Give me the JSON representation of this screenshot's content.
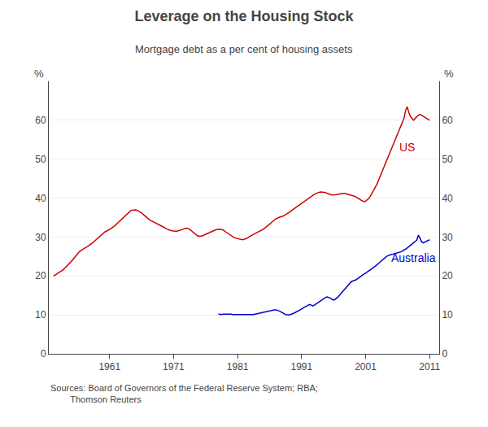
{
  "chart_data": {
    "type": "line",
    "title": "Leverage on the Housing Stock",
    "subtitle": "Mortgage debt as a per cent of housing assets",
    "ylabel": "%",
    "y2label": "%",
    "source": "Sources: Board of Governors of the Federal Reserve System; RBA;\n        Thomson Reuters",
    "xlim": [
      1951.5,
      2012.5
    ],
    "xticks": [
      1961,
      1971,
      1981,
      1991,
      2001,
      2011
    ],
    "ylim": [
      0,
      70
    ],
    "yticks": [
      0,
      10,
      20,
      30,
      40,
      50,
      60
    ],
    "y2lim": [
      0,
      70
    ],
    "y2ticks": [
      0,
      10,
      20,
      30,
      40,
      50,
      60
    ],
    "grid": true,
    "annotations": [
      {
        "text": "US",
        "x": 2006.0,
        "y": 51.0,
        "color": "#cc0000"
      },
      {
        "text": "Australia",
        "x": 2004.8,
        "y": 22.5,
        "color": "#0000cc"
      }
    ],
    "series": [
      {
        "name": "US",
        "color": "#cc0000",
        "x": [
          1952.25,
          1952.5,
          1952.75,
          1953.0,
          1953.25,
          1953.5,
          1953.75,
          1954.0,
          1954.25,
          1954.5,
          1954.75,
          1955.0,
          1955.25,
          1955.5,
          1955.75,
          1956.0,
          1956.25,
          1956.5,
          1956.75,
          1957.0,
          1957.25,
          1957.5,
          1957.75,
          1958.0,
          1958.25,
          1958.5,
          1958.75,
          1959.0,
          1959.25,
          1959.5,
          1959.75,
          1960.0,
          1960.25,
          1960.5,
          1960.75,
          1961.0,
          1961.25,
          1961.5,
          1961.75,
          1962.0,
          1962.25,
          1962.5,
          1962.75,
          1963.0,
          1963.25,
          1963.5,
          1963.75,
          1964.0,
          1964.25,
          1964.5,
          1964.75,
          1965.0,
          1965.25,
          1965.5,
          1965.75,
          1966.0,
          1966.25,
          1966.5,
          1966.75,
          1967.0,
          1967.25,
          1967.5,
          1967.75,
          1968.0,
          1968.25,
          1968.5,
          1968.75,
          1969.0,
          1969.25,
          1969.5,
          1969.75,
          1970.0,
          1970.25,
          1970.5,
          1970.75,
          1971.0,
          1971.25,
          1971.5,
          1971.75,
          1972.0,
          1972.25,
          1972.5,
          1972.75,
          1973.0,
          1973.25,
          1973.5,
          1973.75,
          1974.0,
          1974.25,
          1974.5,
          1974.75,
          1975.0,
          1975.25,
          1975.5,
          1975.75,
          1976.0,
          1976.25,
          1976.5,
          1976.75,
          1977.0,
          1977.25,
          1977.5,
          1977.75,
          1978.0,
          1978.25,
          1978.5,
          1978.75,
          1979.0,
          1979.25,
          1979.5,
          1979.75,
          1980.0,
          1980.25,
          1980.5,
          1980.75,
          1981.0,
          1981.25,
          1981.5,
          1981.75,
          1982.0,
          1982.25,
          1982.5,
          1982.75,
          1983.0,
          1983.25,
          1983.5,
          1983.75,
          1984.0,
          1984.25,
          1984.5,
          1984.75,
          1985.0,
          1985.25,
          1985.5,
          1985.75,
          1986.0,
          1986.25,
          1986.5,
          1986.75,
          1987.0,
          1987.25,
          1987.5,
          1987.75,
          1988.0,
          1988.25,
          1988.5,
          1988.75,
          1989.0,
          1989.25,
          1989.5,
          1989.75,
          1990.0,
          1990.25,
          1990.5,
          1990.75,
          1991.0,
          1991.25,
          1991.5,
          1991.75,
          1992.0,
          1992.25,
          1992.5,
          1992.75,
          1993.0,
          1993.25,
          1993.5,
          1993.75,
          1994.0,
          1994.25,
          1994.5,
          1994.75,
          1995.0,
          1995.25,
          1995.5,
          1995.75,
          1996.0,
          1996.25,
          1996.5,
          1996.75,
          1997.0,
          1997.25,
          1997.5,
          1997.75,
          1998.0,
          1998.25,
          1998.5,
          1998.75,
          1999.0,
          1999.25,
          1999.5,
          1999.75,
          2000.0,
          2000.25,
          2000.5,
          2000.75,
          2001.0,
          2001.25,
          2001.5,
          2001.75,
          2002.0,
          2002.25,
          2002.5,
          2002.75,
          2003.0,
          2003.25,
          2003.5,
          2003.75,
          2004.0,
          2004.25,
          2004.5,
          2004.75,
          2005.0,
          2005.25,
          2005.5,
          2005.75,
          2006.0,
          2006.25,
          2006.5,
          2006.75,
          2007.0,
          2007.25,
          2007.5,
          2007.75,
          2008.0,
          2008.25,
          2008.5,
          2008.75,
          2009.0,
          2009.25,
          2009.5,
          2009.75,
          2010.0,
          2010.25,
          2010.5,
          2010.75,
          2011.0
        ],
        "values": [
          20.0,
          20.2,
          20.5,
          20.8,
          21.0,
          21.3,
          21.6,
          22.0,
          22.3,
          22.7,
          23.2,
          23.7,
          24.2,
          24.7,
          25.3,
          25.8,
          26.2,
          26.5,
          26.8,
          27.1,
          27.3,
          27.5,
          27.8,
          28.0,
          28.3,
          28.7,
          29.1,
          29.5,
          29.9,
          30.3,
          30.7,
          31.0,
          31.3,
          31.5,
          31.7,
          31.9,
          32.2,
          32.5,
          32.8,
          33.2,
          33.6,
          34.0,
          34.4,
          34.8,
          35.2,
          35.6,
          36.0,
          36.4,
          36.7,
          36.9,
          37.0,
          37.0,
          36.9,
          36.7,
          36.5,
          36.2,
          35.8,
          35.4,
          35.0,
          34.7,
          34.4,
          34.2,
          34.0,
          33.8,
          33.6,
          33.4,
          33.2,
          33.0,
          32.8,
          32.5,
          32.2,
          32.0,
          31.8,
          31.7,
          31.6,
          31.5,
          31.5,
          31.5,
          31.6,
          31.7,
          31.8,
          32.0,
          32.2,
          32.3,
          32.2,
          32.0,
          31.7,
          31.3,
          30.9,
          30.6,
          30.3,
          30.2,
          30.2,
          30.3,
          30.5,
          30.7,
          30.9,
          31.1,
          31.3,
          31.5,
          31.7,
          31.8,
          31.9,
          32.0,
          32.0,
          31.9,
          31.8,
          31.5,
          31.2,
          30.9,
          30.6,
          30.3,
          30.0,
          29.8,
          29.7,
          29.6,
          29.5,
          29.4,
          29.3,
          29.4,
          29.5,
          29.7,
          30.0,
          30.3,
          30.5,
          30.7,
          30.9,
          31.1,
          31.3,
          31.5,
          31.7,
          32.0,
          32.3,
          32.6,
          32.9,
          33.3,
          33.7,
          34.1,
          34.4,
          34.7,
          34.9,
          35.1,
          35.2,
          35.3,
          35.5,
          35.7,
          36.0,
          36.3,
          36.6,
          36.9,
          37.2,
          37.5,
          37.8,
          38.1,
          38.4,
          38.7,
          39.0,
          39.3,
          39.6,
          39.9,
          40.2,
          40.5,
          40.8,
          41.0,
          41.2,
          41.4,
          41.5,
          41.6,
          41.6,
          41.5,
          41.4,
          41.2,
          41.0,
          40.9,
          40.8,
          40.8,
          40.8,
          40.9,
          41.0,
          41.1,
          41.2,
          41.2,
          41.2,
          41.1,
          41.0,
          40.9,
          40.8,
          40.7,
          40.5,
          40.3,
          40.1,
          39.8,
          39.5,
          39.3,
          39.1,
          39.2,
          39.5,
          39.9,
          40.5,
          41.2,
          42.0,
          42.8,
          43.5,
          44.5,
          45.5,
          46.5,
          47.5,
          48.5,
          49.5,
          50.5,
          51.5,
          52.5,
          53.5,
          54.5,
          55.5,
          56.5,
          57.5,
          58.5,
          59.5,
          60.5,
          62.5,
          63.5,
          62.0,
          61.0,
          60.5,
          60.0,
          60.5,
          61.0,
          61.3,
          61.5,
          61.3,
          61.0,
          60.8,
          60.5,
          60.2,
          60.0
        ]
      },
      {
        "name": "Australia",
        "color": "#0000cc",
        "x": [
          1978.0,
          1978.25,
          1978.5,
          1978.75,
          1979.0,
          1979.25,
          1979.5,
          1979.75,
          1980.0,
          1980.25,
          1980.5,
          1980.75,
          1981.0,
          1981.25,
          1981.5,
          1981.75,
          1982.0,
          1982.25,
          1982.5,
          1982.75,
          1983.0,
          1983.25,
          1983.5,
          1983.75,
          1984.0,
          1984.25,
          1984.5,
          1984.75,
          1985.0,
          1985.25,
          1985.5,
          1985.75,
          1986.0,
          1986.25,
          1986.5,
          1986.75,
          1987.0,
          1987.25,
          1987.5,
          1987.75,
          1988.0,
          1988.25,
          1988.5,
          1988.75,
          1989.0,
          1989.25,
          1989.5,
          1989.75,
          1990.0,
          1990.25,
          1990.5,
          1990.75,
          1991.0,
          1991.25,
          1991.5,
          1991.75,
          1992.0,
          1992.25,
          1992.5,
          1992.75,
          1993.0,
          1993.25,
          1993.5,
          1993.75,
          1994.0,
          1994.25,
          1994.5,
          1994.75,
          1995.0,
          1995.25,
          1995.5,
          1995.75,
          1996.0,
          1996.25,
          1996.5,
          1996.75,
          1997.0,
          1997.25,
          1997.5,
          1997.75,
          1998.0,
          1998.25,
          1998.5,
          1998.75,
          1999.0,
          1999.25,
          1999.5,
          1999.75,
          2000.0,
          2000.25,
          2000.5,
          2000.75,
          2001.0,
          2001.25,
          2001.5,
          2001.75,
          2002.0,
          2002.25,
          2002.5,
          2002.75,
          2003.0,
          2003.25,
          2003.5,
          2003.75,
          2004.0,
          2004.25,
          2004.5,
          2004.75,
          2005.0,
          2005.25,
          2005.5,
          2005.75,
          2006.0,
          2006.25,
          2006.5,
          2006.75,
          2007.0,
          2007.25,
          2007.5,
          2007.75,
          2008.0,
          2008.25,
          2008.5,
          2008.75,
          2009.0,
          2009.25,
          2009.5,
          2009.75,
          2010.0,
          2010.25,
          2010.5,
          2010.75,
          2011.0
        ],
        "values": [
          10.2,
          10.1,
          10.1,
          10.2,
          10.2,
          10.3,
          10.3,
          10.2,
          10.2,
          10.1,
          10.1,
          10.0,
          10.0,
          10.0,
          10.0,
          10.1,
          10.1,
          10.1,
          10.0,
          10.0,
          10.0,
          10.1,
          10.1,
          10.2,
          10.3,
          10.4,
          10.5,
          10.6,
          10.7,
          10.8,
          10.9,
          11.0,
          11.1,
          11.2,
          11.3,
          11.3,
          11.3,
          11.2,
          11.0,
          10.8,
          10.5,
          10.3,
          10.1,
          10.0,
          10.0,
          10.1,
          10.2,
          10.4,
          10.6,
          10.8,
          11.0,
          11.2,
          11.5,
          11.8,
          12.0,
          12.3,
          12.5,
          12.7,
          12.5,
          12.3,
          12.5,
          12.8,
          13.0,
          13.3,
          13.7,
          14.0,
          14.3,
          14.5,
          14.6,
          14.5,
          14.3,
          14.0,
          13.8,
          14.0,
          14.3,
          14.7,
          15.2,
          15.7,
          16.2,
          16.7,
          17.2,
          17.7,
          18.2,
          18.5,
          18.7,
          18.8,
          19.0,
          19.3,
          19.6,
          20.0,
          20.3,
          20.5,
          20.7,
          21.0,
          21.3,
          21.5,
          21.8,
          22.1,
          22.5,
          22.8,
          23.2,
          23.6,
          24.0,
          24.4,
          24.7,
          25.0,
          25.2,
          25.4,
          25.5,
          25.6,
          25.7,
          25.8,
          25.9,
          26.0,
          26.2,
          26.4,
          26.6,
          26.9,
          27.2,
          27.5,
          27.8,
          28.2,
          28.5,
          28.8,
          29.2,
          30.5,
          29.5,
          28.8,
          28.5,
          28.7,
          28.9,
          29.1,
          29.3
        ]
      }
    ]
  }
}
